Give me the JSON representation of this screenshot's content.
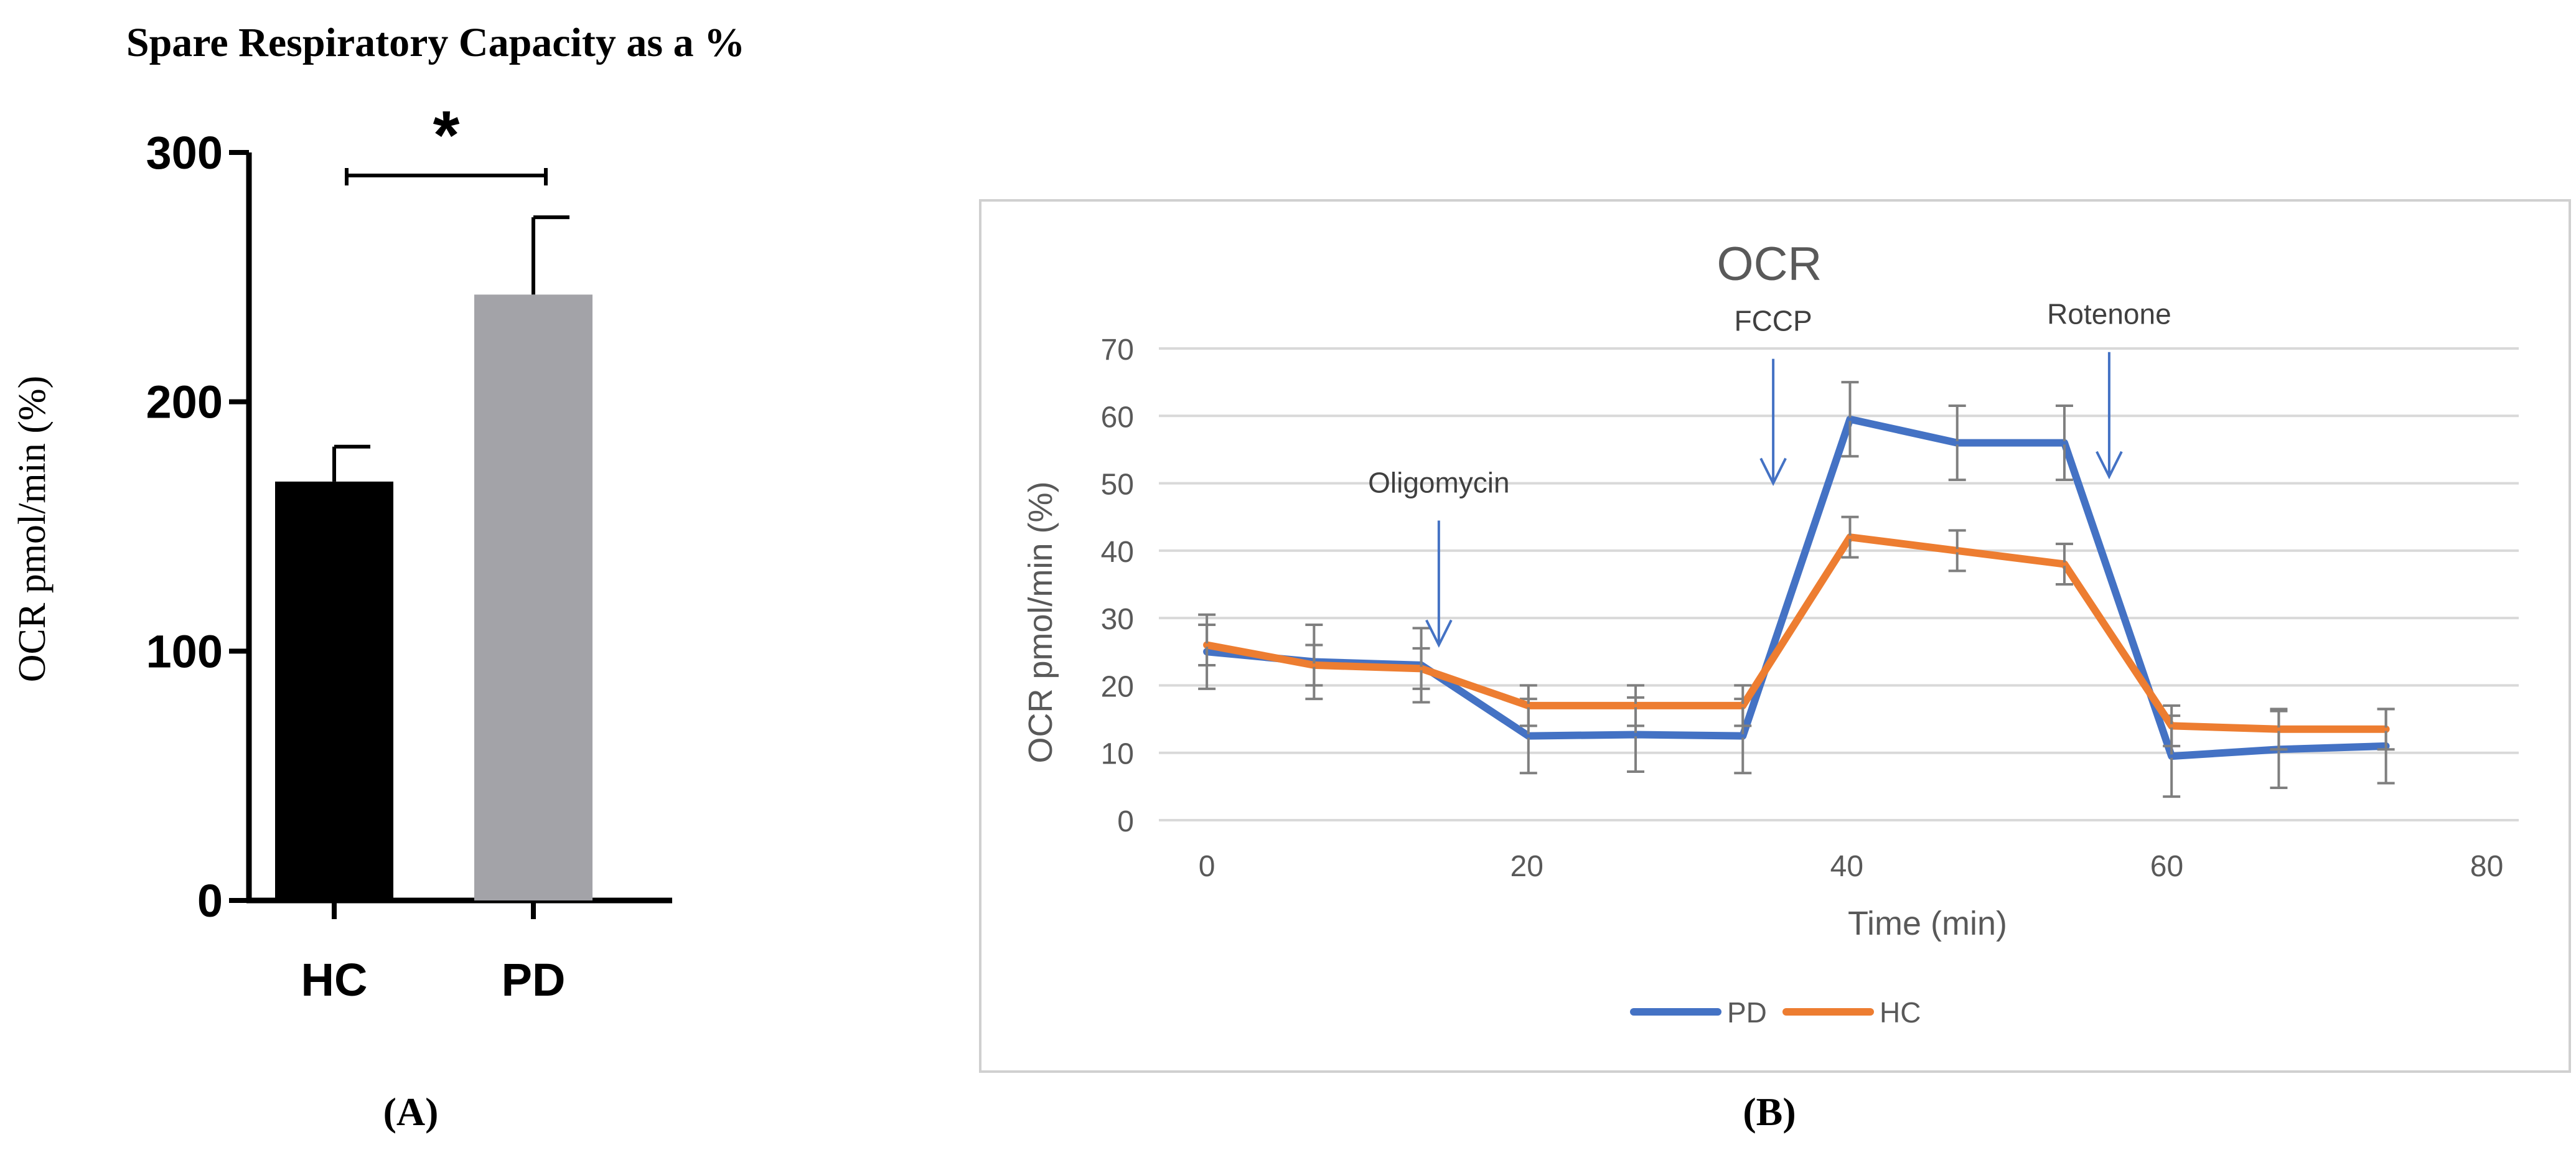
{
  "figure_labels": {
    "a": "(A)",
    "b": "(B)"
  },
  "chart_data": [
    {
      "type": "bar",
      "title": "Spare Respiratory Capacity as a %",
      "xlabel": "",
      "ylabel": "OCR pmol/min (%)",
      "categories": [
        "HC",
        "PD"
      ],
      "values": [
        168,
        243
      ],
      "errors": [
        14,
        31
      ],
      "bar_colors": [
        "#000000",
        "#a3a3a8"
      ],
      "ylim": [
        0,
        300
      ],
      "yticks": [
        0,
        100,
        200,
        300
      ],
      "significance": {
        "between": [
          "HC",
          "PD"
        ],
        "label": "*"
      }
    },
    {
      "type": "line",
      "title": "OCR",
      "xlabel": "Time (min)",
      "ylabel": "OCR pmol/min (%)",
      "xlim": [
        -3,
        82
      ],
      "ylim": [
        0,
        70
      ],
      "xticks": [
        0,
        20,
        40,
        60,
        80
      ],
      "yticks": [
        0,
        10,
        20,
        30,
        40,
        50,
        60,
        70
      ],
      "grid": true,
      "legend": "bottom-center",
      "x": [
        0,
        6.7,
        13.4,
        20.1,
        26.8,
        33.5,
        40.2,
        46.9,
        53.6,
        60.3,
        67,
        73.7
      ],
      "series": [
        {
          "name": "PD",
          "color": "#4472c4",
          "values": [
            25,
            23.5,
            23,
            12.5,
            12.7,
            12.5,
            59.5,
            56,
            56,
            9.5,
            10.5,
            11
          ],
          "errors": [
            5.5,
            5.5,
            5.5,
            5.5,
            5.5,
            5.5,
            5.5,
            5.5,
            5.5,
            6,
            5.7,
            5.5
          ]
        },
        {
          "name": "HC",
          "color": "#ed7d31",
          "values": [
            26,
            23,
            22.5,
            17,
            17,
            17,
            42,
            40,
            38,
            14,
            13.5,
            13.5
          ],
          "errors": [
            3,
            3,
            3,
            3,
            3,
            3,
            3,
            3,
            3,
            3,
            3,
            3
          ]
        }
      ],
      "annotations": [
        {
          "label": "Oligomycin",
          "x": 14.5,
          "y": 26
        },
        {
          "label": "FCCP",
          "x": 35.4,
          "y": 50
        },
        {
          "label": "Rotenone",
          "x": 56.4,
          "y": 51
        }
      ]
    }
  ]
}
